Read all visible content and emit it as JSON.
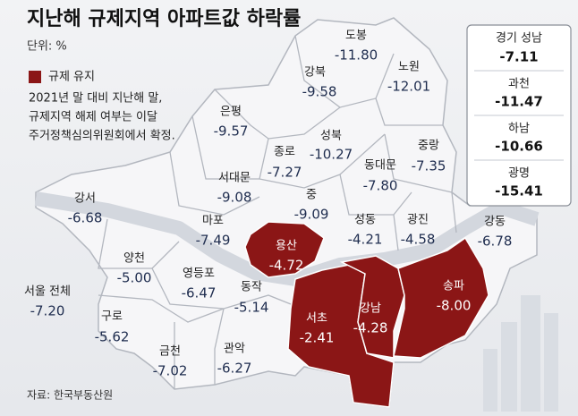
{
  "title": "지난해 규제지역 아파트값 하락률",
  "unit": "단위: %",
  "legend": {
    "label": "규제 유지"
  },
  "note": [
    "2021년 말 대비 지난해 말,",
    "규제지역 해제 여부는 이달",
    "주거정책심의위원회에서 확정."
  ],
  "districts": [
    {
      "name": "도봉",
      "value": "-11.80"
    },
    {
      "name": "노원",
      "value": "-12.01"
    },
    {
      "name": "강북",
      "value": "-9.58"
    },
    {
      "name": "은평",
      "value": "-9.57"
    },
    {
      "name": "성북",
      "value": "-10.27"
    },
    {
      "name": "종로",
      "value": "-7.27"
    },
    {
      "name": "중랑",
      "value": "-7.35"
    },
    {
      "name": "동대문",
      "value": "-7.80"
    },
    {
      "name": "서대문",
      "value": "-9.08"
    },
    {
      "name": "중",
      "value": "-9.09"
    },
    {
      "name": "강서",
      "value": "-6.68"
    },
    {
      "name": "마포",
      "value": "-7.49"
    },
    {
      "name": "성동",
      "value": "-4.21"
    },
    {
      "name": "광진",
      "value": "-4.58"
    },
    {
      "name": "강동",
      "value": "-6.78"
    },
    {
      "name": "용산",
      "value": "-4.72"
    },
    {
      "name": "양천",
      "value": "-5.00"
    },
    {
      "name": "송파",
      "value": "-8.00"
    },
    {
      "name": "영등포",
      "value": "-6.47"
    },
    {
      "name": "동작",
      "value": "-5.14"
    },
    {
      "name": "서울 전체",
      "value": "-7.20"
    },
    {
      "name": "서초",
      "value": "-2.41"
    },
    {
      "name": "강남",
      "value": "-4.28"
    },
    {
      "name": "구로",
      "value": "-5.62"
    },
    {
      "name": "금천",
      "value": "-7.02"
    },
    {
      "name": "관악",
      "value": "-6.27"
    }
  ],
  "gyeonggi": [
    {
      "name": "경기 성남",
      "value": "-7.11"
    },
    {
      "name": "과천",
      "value": "-11.47"
    },
    {
      "name": "하남",
      "value": "-10.66"
    },
    {
      "name": "광명",
      "value": "-15.41"
    }
  ],
  "source": "자료: 한국부동산원"
}
